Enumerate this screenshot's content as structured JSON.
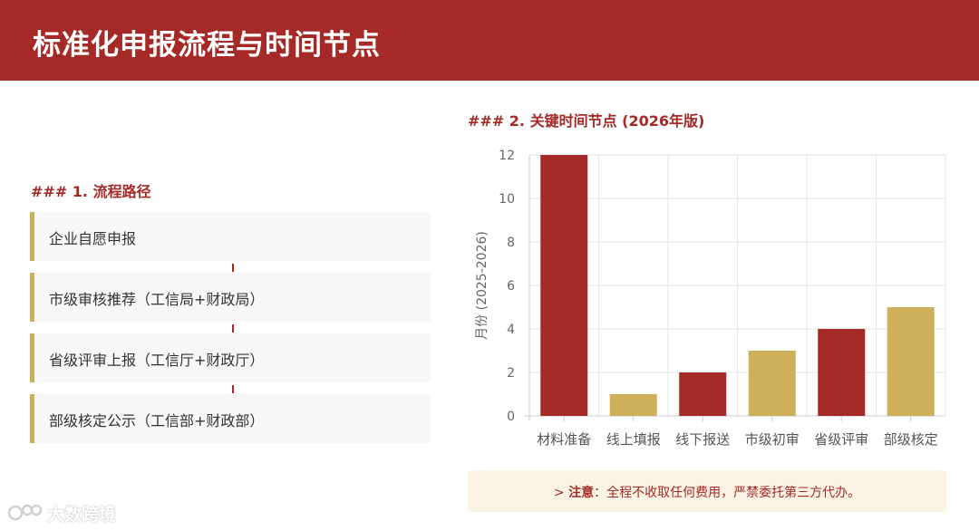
{
  "header": {
    "title": "标准化申报流程与时间节点"
  },
  "flow": {
    "title": "### 1. 流程路径",
    "steps": [
      "企业自愿申报",
      "市级审核推荐（工信局+财政局）",
      "省级评审上报（工信厅+财政厅）",
      "部级核定公示（工信部+财政部）"
    ]
  },
  "timeline": {
    "title": "### 2. 关键时间节点 (2026年版)"
  },
  "chart_data": {
    "type": "bar",
    "categories": [
      "材料准备",
      "线上填报",
      "线下报送",
      "市级初审",
      "省级评审",
      "部级核定"
    ],
    "values": [
      12,
      1,
      2,
      3,
      4,
      5
    ],
    "ylabel": "月份 (2025-2026)",
    "ylim": [
      0,
      12
    ],
    "yticks": [
      0,
      2,
      4,
      6,
      8,
      10,
      12
    ],
    "grid": true,
    "bar_colors": [
      "#a52a27",
      "#cfb05a",
      "#a52a27",
      "#cfb05a",
      "#a52a27",
      "#cfb05a"
    ]
  },
  "note": {
    "prefix": "> ",
    "label": "注意",
    "text": "：全程不收取任何费用，严禁委托第三方代办。"
  },
  "watermark": {
    "text": "大数跨境"
  },
  "colors": {
    "primary": "#a52a27",
    "gold": "#cfb05a",
    "note_bg": "#fbf3e4"
  }
}
